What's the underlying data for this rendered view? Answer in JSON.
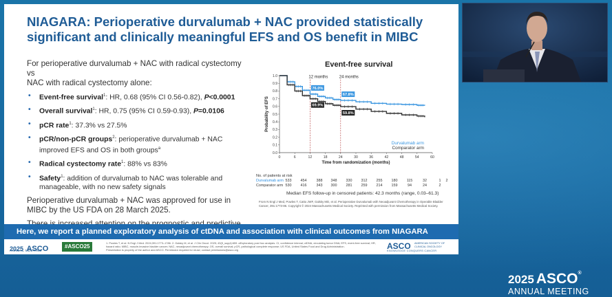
{
  "slide": {
    "title_line1": "NIAGARA: Perioperative durvalumab + NAC provided statistically",
    "title_line2": "significant and clinically meaningful EFS and OS benefit in MIBC",
    "intro_line1": "For perioperative durvalumab + NAC with radical cystectomy vs",
    "intro_line2": "NAC with radical cystectomy alone:",
    "bullets": [
      {
        "label": "Event-free survival",
        "sup": "1",
        "text": ": HR, 0.68 (95% CI 0.56-0.82), ",
        "p": "P<0.0001"
      },
      {
        "label": "Overall survival",
        "sup": "1",
        "text": ": HR, 0.75 (95% CI 0.59-0.93), ",
        "p": "P=0.0106"
      },
      {
        "label": "pCR rate",
        "sup": "1",
        "text": ": 37.3% vs 27.5%",
        "p": ""
      },
      {
        "label": "pCR/non-pCR groups",
        "sup": "2",
        "text": ": perioperative durvalumab + NAC improved EFS and OS in both groups",
        "p": "",
        "tail_sup": "a"
      },
      {
        "label": "Radical cystectomy rate",
        "sup": "1",
        "text": ": 88% vs 83%",
        "p": ""
      },
      {
        "label": "Safety",
        "sup": "1",
        "text": ": addition of durvalumab to NAC was tolerable and manageable, with no new safety signals",
        "p": ""
      }
    ],
    "para1": "Perioperative durvalumab + NAC was approved for use in MIBC by the US FDA on 28 March 2025.",
    "para2": "There is increased attention on the prognostic and predictive value of ctDNA in MIBC.",
    "banner": "Here, we report a planned exploratory analysis of ctDNA and association with clinical outcomes from NIAGARA",
    "risk_header": "No. of patients at risk",
    "risk_rows": [
      {
        "label": "Durvalumab arm",
        "values": [
          "533",
          "454",
          "388",
          "348",
          "330",
          "312",
          "255",
          "180",
          "115",
          "32",
          "1",
          "2"
        ]
      },
      {
        "label": "Comparator arm",
        "values": [
          "530",
          "416",
          "343",
          "300",
          "281",
          "259",
          "214",
          "159",
          "94",
          "24",
          "2",
          ""
        ]
      }
    ],
    "followup": "Median EFS follow-up in censored patients: 42.3 months (range, 0.03–61.3)",
    "citation": "From N Engl J Med, Powles T, Catto JWF, Galsky MD, et al. Perioperative Durvalumab with Neoadjuvant Chemotherapy in Operable Bladder Cancer, 391:1773-86. Copyright © 2024 Massachusetts Medical Society. Reprinted with permission from Massachusetts Medical Society.",
    "footer": {
      "left_year": "2025",
      "left_name": "ASCO",
      "left_sub": "ANNUAL MEETING",
      "hashtag": "#ASCO25",
      "footnote": "1. Powles T, et al. N Engl J Med. 2024;391:1773–1786. 2. Galsky M, et al. J Clin Oncol. 2025; 43(5_suppl):659. aExploratory post hoc analysis. CI, confidence interval; ctDNA, circulating tumor DNA; EFS, event-free survival; HR, hazard ratio; MIBC, muscle-invasive bladder cancer; NAC, neoadjuvant chemotherapy; OS, overall survival; pCR, pathological complete response; US FDA, United States Food and Drug Administration.",
      "footnote2": "Presentation is property of the author and ASCO. Permission required for reuse; contact permissions@asco.org",
      "right_name": "ASCO",
      "right_small": "AMERICAN SOCIETY OF CLINICAL ONCOLOGY",
      "right_tag": "KNOWLEDGE CONQUERS CANCER"
    }
  },
  "chart_data": {
    "type": "line",
    "title": "Event-free survival",
    "xlabel": "Time from randomization (months)",
    "ylabel": "Probability of EFS",
    "xlim": [
      0,
      60
    ],
    "ylim": [
      0,
      1.0
    ],
    "xticks": [
      0,
      6,
      12,
      18,
      24,
      30,
      36,
      42,
      48,
      54,
      60
    ],
    "yticks": [
      0,
      0.1,
      0.2,
      0.3,
      0.4,
      0.5,
      0.6,
      0.7,
      0.8,
      0.9,
      1.0
    ],
    "legend": "bottom-right",
    "series": [
      {
        "name": "Durvalumab arm",
        "color": "#3a96e0",
        "x": [
          0,
          3,
          6,
          9,
          12,
          15,
          18,
          21,
          24,
          30,
          36,
          42,
          48,
          54,
          57
        ],
        "y": [
          1.0,
          0.92,
          0.86,
          0.81,
          0.76,
          0.73,
          0.71,
          0.69,
          0.678,
          0.66,
          0.64,
          0.63,
          0.625,
          0.615,
          0.61
        ]
      },
      {
        "name": "Comparator arm",
        "color": "#333333",
        "x": [
          0,
          3,
          6,
          9,
          12,
          15,
          18,
          21,
          24,
          30,
          36,
          42,
          48,
          54,
          57
        ],
        "y": [
          1.0,
          0.88,
          0.8,
          0.74,
          0.699,
          0.665,
          0.635,
          0.615,
          0.598,
          0.565,
          0.535,
          0.51,
          0.49,
          0.475,
          0.46
        ]
      }
    ],
    "annotations": [
      {
        "label": "12 months",
        "x": 12
      },
      {
        "label": "24 months",
        "x": 24
      },
      {
        "label": "76.0%",
        "series": "Durvalumab arm",
        "x": 12
      },
      {
        "label": "67.8%",
        "series": "Durvalumab arm",
        "x": 24
      },
      {
        "label": "69.9%",
        "series": "Comparator arm",
        "x": 12
      },
      {
        "label": "59.8%",
        "series": "Comparator arm",
        "x": 24
      }
    ]
  },
  "overlay": {
    "year": "2025",
    "name": "ASCO",
    "reg": "®",
    "sub": "ANNUAL MEETING"
  }
}
